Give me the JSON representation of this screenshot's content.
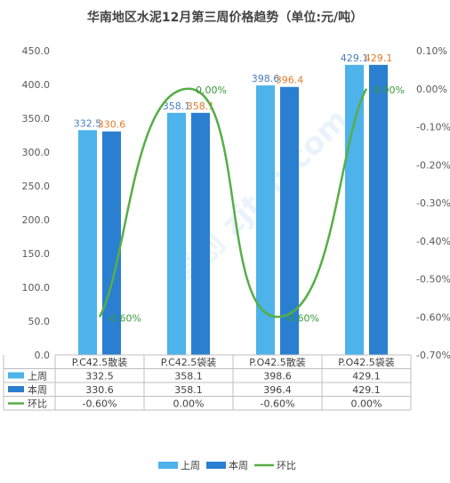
{
  "chart_data": {
    "type": "bar",
    "title": "华南地区水泥12月第三周价格趋势（单位:元/吨）",
    "categories": [
      "P.C42.5散装",
      "P.C42.5袋装",
      "P.O42.5散装",
      "P.O42.5袋装"
    ],
    "series": [
      {
        "name": "上周",
        "type": "bar",
        "axis": "left",
        "color": "#4db3ea",
        "label_color": "#4a7ebb",
        "values": [
          332.5,
          358.1,
          398.6,
          429.1
        ],
        "table_values": [
          "332.5",
          "358.1",
          "398.6",
          "429.1"
        ]
      },
      {
        "name": "本周",
        "type": "bar",
        "axis": "left",
        "color": "#2a7fd1",
        "label_color": "#e07b28",
        "values": [
          330.6,
          358.1,
          396.4,
          429.1
        ],
        "table_values": [
          "330.6",
          "358.1",
          "396.4",
          "429.1"
        ]
      },
      {
        "name": "环比",
        "type": "line",
        "axis": "right",
        "color": "#57ae47",
        "label_color": "#3a9a3a",
        "values": [
          -0.6,
          0.0,
          -0.6,
          0.0
        ],
        "table_values": [
          "-0.60%",
          "0.00%",
          "-0.60%",
          "0.00%"
        ],
        "labels": [
          "-0.60%",
          "0.00%",
          "-0.60%",
          "0.00%"
        ]
      }
    ],
    "y_left": {
      "min": 0,
      "max": 450,
      "step": 50,
      "ticks": [
        "0.0",
        "50.0",
        "100.0",
        "150.0",
        "200.0",
        "250.0",
        "300.0",
        "350.0",
        "400.0",
        "450.0"
      ]
    },
    "y_right": {
      "min": -0.7,
      "max": 0.1,
      "step": 0.1,
      "ticks": [
        "-0.70%",
        "-0.60%",
        "-0.50%",
        "-0.40%",
        "-0.30%",
        "-0.20%",
        "-0.10%",
        "0.00%",
        "0.10%"
      ]
    },
    "data_table": true,
    "legend_position": "bottom",
    "grid": false,
    "watermark": "卓创 zjtcn.com"
  }
}
